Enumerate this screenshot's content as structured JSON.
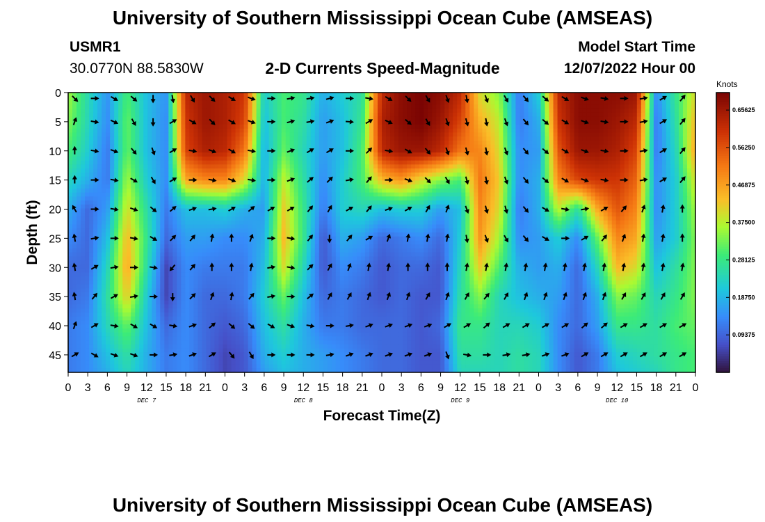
{
  "header": {
    "title_top": "University of Southern Mississippi Ocean Cube (AMSEAS)",
    "title_bottom": "University of Southern Mississippi Ocean Cube (AMSEAS)",
    "station": "USMR1",
    "coords": "30.0770N  88.5830W",
    "plot_title": "2-D Currents Speed-Magnitude",
    "model_label": "Model Start Time",
    "model_time": "12/07/2022 Hour 00"
  },
  "chart_data": {
    "type": "heatmap",
    "title": "2-D Currents Speed-Magnitude",
    "xlabel": "Forecast Time(Z)",
    "ylabel": "Depth (ft)",
    "x_ticks": [
      "0",
      "3",
      "6",
      "9",
      "12",
      "15",
      "18",
      "21",
      "0",
      "3",
      "6",
      "9",
      "12",
      "15",
      "18",
      "21",
      "0",
      "3",
      "6",
      "9",
      "12",
      "15",
      "18",
      "21",
      "0",
      "3",
      "6",
      "9",
      "12",
      "15",
      "18",
      "21",
      "0"
    ],
    "day_labels": [
      {
        "label": "DEC 7",
        "hour": 12
      },
      {
        "label": "DEC 8",
        "hour": 36
      },
      {
        "label": "DEC 9",
        "hour": 60
      },
      {
        "label": "DEC 10",
        "hour": 84
      }
    ],
    "y_ticks": [
      0,
      5,
      10,
      15,
      20,
      25,
      30,
      35,
      40,
      45
    ],
    "xlim_hours": [
      0,
      96
    ],
    "ylim_ft": [
      0,
      48
    ],
    "colorbar": {
      "label": "Knots",
      "range": [
        0,
        0.7
      ],
      "ticks": [
        "0.65625",
        "0.56250",
        "0.46875",
        "0.37500",
        "0.28125",
        "0.18750",
        "0.09375"
      ],
      "tick_values": [
        0.65625,
        0.5625,
        0.46875,
        0.375,
        0.28125,
        0.1875,
        0.09375
      ]
    },
    "speed_field": {
      "units": "knots",
      "columns_hours": [
        0,
        3,
        6,
        9,
        12,
        15,
        18,
        21,
        24,
        27,
        30,
        33,
        36,
        39,
        42,
        45,
        48,
        51,
        54,
        57,
        60,
        63,
        66,
        69,
        72,
        75,
        78,
        81,
        84,
        87,
        90,
        93,
        96
      ],
      "depth_rows_ft": [
        0,
        5,
        10,
        15,
        20,
        25,
        30,
        35,
        40,
        45,
        48
      ],
      "values": [
        [
          0.36,
          0.25,
          0.15,
          0.3,
          0.2,
          0.15,
          0.62,
          0.66,
          0.64,
          0.6,
          0.22,
          0.3,
          0.28,
          0.18,
          0.22,
          0.26,
          0.62,
          0.68,
          0.7,
          0.68,
          0.62,
          0.4,
          0.34,
          0.12,
          0.22,
          0.62,
          0.68,
          0.68,
          0.68,
          0.66,
          0.14,
          0.28,
          0.4
        ],
        [
          0.34,
          0.24,
          0.14,
          0.32,
          0.2,
          0.14,
          0.6,
          0.66,
          0.64,
          0.58,
          0.2,
          0.3,
          0.26,
          0.16,
          0.2,
          0.28,
          0.64,
          0.68,
          0.7,
          0.66,
          0.58,
          0.45,
          0.38,
          0.12,
          0.18,
          0.6,
          0.68,
          0.68,
          0.66,
          0.62,
          0.12,
          0.26,
          0.44
        ],
        [
          0.3,
          0.22,
          0.12,
          0.32,
          0.2,
          0.14,
          0.58,
          0.64,
          0.62,
          0.52,
          0.18,
          0.32,
          0.24,
          0.16,
          0.2,
          0.3,
          0.62,
          0.66,
          0.66,
          0.62,
          0.52,
          0.5,
          0.4,
          0.14,
          0.16,
          0.56,
          0.66,
          0.66,
          0.64,
          0.58,
          0.12,
          0.24,
          0.46
        ],
        [
          0.24,
          0.18,
          0.12,
          0.36,
          0.22,
          0.14,
          0.46,
          0.5,
          0.5,
          0.4,
          0.18,
          0.38,
          0.26,
          0.14,
          0.22,
          0.3,
          0.44,
          0.48,
          0.4,
          0.34,
          0.3,
          0.52,
          0.42,
          0.14,
          0.18,
          0.5,
          0.58,
          0.6,
          0.6,
          0.54,
          0.14,
          0.22,
          0.4
        ],
        [
          0.18,
          0.1,
          0.16,
          0.4,
          0.26,
          0.12,
          0.2,
          0.2,
          0.22,
          0.18,
          0.16,
          0.42,
          0.28,
          0.12,
          0.22,
          0.24,
          0.2,
          0.22,
          0.22,
          0.16,
          0.2,
          0.5,
          0.4,
          0.12,
          0.18,
          0.38,
          0.26,
          0.46,
          0.56,
          0.5,
          0.14,
          0.22,
          0.36
        ],
        [
          0.14,
          0.1,
          0.2,
          0.44,
          0.28,
          0.1,
          0.16,
          0.16,
          0.14,
          0.14,
          0.18,
          0.44,
          0.28,
          0.08,
          0.18,
          0.16,
          0.1,
          0.12,
          0.14,
          0.1,
          0.22,
          0.48,
          0.36,
          0.14,
          0.16,
          0.22,
          0.14,
          0.32,
          0.5,
          0.46,
          0.16,
          0.22,
          0.34
        ],
        [
          0.1,
          0.1,
          0.24,
          0.46,
          0.26,
          0.06,
          0.14,
          0.12,
          0.12,
          0.12,
          0.2,
          0.4,
          0.24,
          0.08,
          0.14,
          0.12,
          0.08,
          0.1,
          0.1,
          0.08,
          0.24,
          0.42,
          0.3,
          0.18,
          0.16,
          0.18,
          0.1,
          0.24,
          0.44,
          0.4,
          0.2,
          0.26,
          0.34
        ],
        [
          0.1,
          0.12,
          0.26,
          0.42,
          0.22,
          0.06,
          0.14,
          0.1,
          0.1,
          0.12,
          0.22,
          0.32,
          0.2,
          0.1,
          0.12,
          0.1,
          0.08,
          0.1,
          0.08,
          0.08,
          0.26,
          0.34,
          0.24,
          0.2,
          0.18,
          0.16,
          0.1,
          0.18,
          0.34,
          0.32,
          0.24,
          0.28,
          0.34
        ],
        [
          0.12,
          0.14,
          0.24,
          0.32,
          0.2,
          0.1,
          0.14,
          0.1,
          0.08,
          0.1,
          0.2,
          0.26,
          0.18,
          0.12,
          0.12,
          0.1,
          0.1,
          0.1,
          0.08,
          0.1,
          0.28,
          0.28,
          0.24,
          0.24,
          0.22,
          0.14,
          0.1,
          0.16,
          0.28,
          0.28,
          0.26,
          0.3,
          0.32
        ],
        [
          0.12,
          0.14,
          0.2,
          0.26,
          0.18,
          0.12,
          0.14,
          0.1,
          0.06,
          0.08,
          0.18,
          0.22,
          0.18,
          0.16,
          0.14,
          0.12,
          0.1,
          0.1,
          0.08,
          0.08,
          0.26,
          0.26,
          0.24,
          0.26,
          0.24,
          0.14,
          0.08,
          0.12,
          0.22,
          0.24,
          0.26,
          0.28,
          0.3
        ],
        [
          0.12,
          0.14,
          0.18,
          0.24,
          0.18,
          0.12,
          0.14,
          0.1,
          0.06,
          0.08,
          0.16,
          0.2,
          0.18,
          0.16,
          0.14,
          0.12,
          0.1,
          0.1,
          0.08,
          0.08,
          0.24,
          0.24,
          0.24,
          0.26,
          0.24,
          0.14,
          0.08,
          0.12,
          0.2,
          0.22,
          0.24,
          0.28,
          0.3
        ]
      ]
    },
    "current_vectors": {
      "columns_hours": [
        1,
        4,
        7,
        10,
        13,
        16,
        19,
        22,
        25,
        28,
        31,
        34,
        37,
        40,
        43,
        46,
        49,
        52,
        55,
        58,
        61,
        64,
        67,
        70,
        73,
        76,
        79,
        82,
        85,
        88,
        91,
        94
      ],
      "depth_rows_ft": [
        1,
        5,
        10,
        15,
        20,
        25,
        30,
        35,
        40,
        45
      ],
      "direction_deg_from_north": [
        [
          135,
          90,
          120,
          130,
          180,
          170,
          150,
          135,
          120,
          110,
          90,
          80,
          80,
          75,
          90,
          100,
          120,
          135,
          150,
          160,
          170,
          160,
          150,
          140,
          130,
          120,
          110,
          100,
          90,
          80,
          60,
          40
        ],
        [
          20,
          100,
          115,
          150,
          180,
          60,
          120,
          135,
          120,
          110,
          90,
          75,
          80,
          70,
          95,
          60,
          115,
          130,
          150,
          160,
          165,
          170,
          160,
          140,
          130,
          120,
          110,
          100,
          90,
          80,
          60,
          40
        ],
        [
          0,
          100,
          110,
          140,
          160,
          60,
          100,
          110,
          120,
          100,
          90,
          70,
          60,
          60,
          90,
          45,
          100,
          120,
          140,
          160,
          165,
          170,
          160,
          140,
          130,
          120,
          110,
          100,
          90,
          80,
          60,
          40
        ],
        [
          0,
          90,
          100,
          120,
          150,
          60,
          90,
          100,
          110,
          100,
          90,
          70,
          50,
          45,
          80,
          40,
          90,
          110,
          135,
          150,
          165,
          170,
          160,
          140,
          130,
          120,
          110,
          100,
          90,
          80,
          60,
          40
        ],
        [
          -30,
          90,
          100,
          110,
          130,
          50,
          70,
          80,
          60,
          50,
          60,
          60,
          40,
          30,
          60,
          40,
          70,
          60,
          30,
          20,
          160,
          165,
          165,
          140,
          120,
          100,
          80,
          60,
          40,
          20,
          10,
          0
        ],
        [
          -10,
          80,
          90,
          100,
          120,
          45,
          40,
          10,
          0,
          20,
          90,
          100,
          40,
          180,
          40,
          60,
          20,
          10,
          10,
          10,
          170,
          160,
          150,
          140,
          120,
          90,
          60,
          40,
          20,
          10,
          10,
          0
        ],
        [
          -10,
          60,
          80,
          90,
          100,
          220,
          40,
          0,
          0,
          10,
          80,
          100,
          45,
          30,
          20,
          10,
          10,
          0,
          0,
          0,
          10,
          10,
          10,
          10,
          10,
          10,
          10,
          10,
          10,
          10,
          10,
          10
        ],
        [
          -10,
          40,
          60,
          80,
          90,
          180,
          45,
          20,
          10,
          40,
          80,
          90,
          50,
          30,
          30,
          20,
          20,
          20,
          30,
          20,
          30,
          40,
          30,
          20,
          20,
          20,
          20,
          20,
          30,
          30,
          30,
          30
        ],
        [
          20,
          60,
          100,
          120,
          120,
          100,
          70,
          50,
          130,
          130,
          120,
          110,
          100,
          90,
          80,
          70,
          70,
          70,
          70,
          60,
          60,
          50,
          60,
          60,
          60,
          60,
          50,
          50,
          60,
          60,
          60,
          60
        ],
        [
          60,
          120,
          110,
          110,
          90,
          80,
          70,
          60,
          140,
          150,
          90,
          90,
          90,
          80,
          70,
          70,
          70,
          70,
          70,
          160,
          100,
          90,
          80,
          80,
          70,
          70,
          60,
          60,
          60,
          60,
          60,
          60
        ]
      ]
    }
  }
}
